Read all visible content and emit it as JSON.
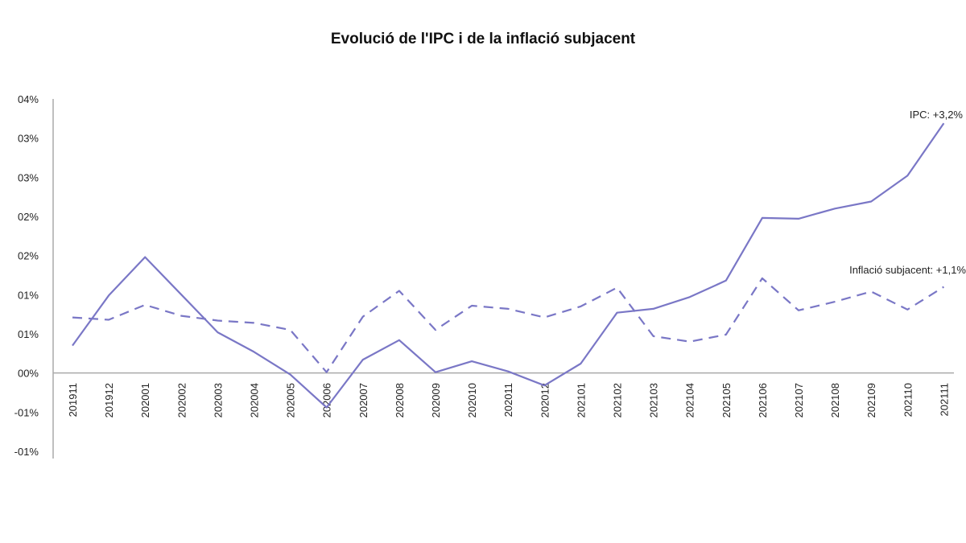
{
  "chart_data": {
    "type": "line",
    "title": "Evolució de l'IPC i de la inflació subjacent",
    "xlabel": "",
    "ylabel": "",
    "categories": [
      "201911",
      "201912",
      "202001",
      "202002",
      "202003",
      "202004",
      "202005",
      "202006",
      "202007",
      "202008",
      "202009",
      "202010",
      "202011",
      "202012",
      "202101",
      "202102",
      "202103",
      "202104",
      "202105",
      "202106",
      "202107",
      "202108",
      "202109",
      "202110",
      "202111"
    ],
    "ylim": [
      -1.0,
      3.5
    ],
    "yticks": [
      {
        "value": 3.5,
        "label": "04%"
      },
      {
        "value": 3.0,
        "label": "03%"
      },
      {
        "value": 2.5,
        "label": "03%"
      },
      {
        "value": 2.0,
        "label": "02%"
      },
      {
        "value": 1.5,
        "label": "02%"
      },
      {
        "value": 1.0,
        "label": "01%"
      },
      {
        "value": 0.5,
        "label": "01%"
      },
      {
        "value": 0.0,
        "label": "00%"
      },
      {
        "value": -0.5,
        "label": "-01%"
      },
      {
        "value": -1.0,
        "label": "-01%"
      }
    ],
    "grid": false,
    "legend": "none",
    "series": [
      {
        "name": "IPC",
        "style": "solid",
        "color": "#7a77c6",
        "values": [
          0.35,
          0.99,
          1.48,
          1.0,
          0.52,
          0.27,
          -0.02,
          -0.44,
          0.17,
          0.42,
          0.01,
          0.15,
          0.02,
          -0.16,
          0.12,
          0.77,
          0.82,
          0.97,
          1.18,
          1.98,
          1.97,
          2.1,
          2.19,
          2.52,
          3.19
        ]
      },
      {
        "name": "Inflació subjacent",
        "style": "dashed",
        "color": "#7a77c6",
        "values": [
          0.71,
          0.68,
          0.87,
          0.73,
          0.67,
          0.64,
          0.55,
          0.01,
          0.72,
          1.05,
          0.55,
          0.86,
          0.82,
          0.71,
          0.85,
          1.09,
          0.47,
          0.4,
          0.49,
          1.21,
          0.8,
          0.91,
          1.04,
          0.81,
          1.1
        ]
      }
    ],
    "annotations": [
      {
        "text": "IPC: +3,2%",
        "series": "IPC"
      },
      {
        "text": "Inflació subjacent: +1,1%",
        "series": "Inflació subjacent"
      }
    ]
  }
}
